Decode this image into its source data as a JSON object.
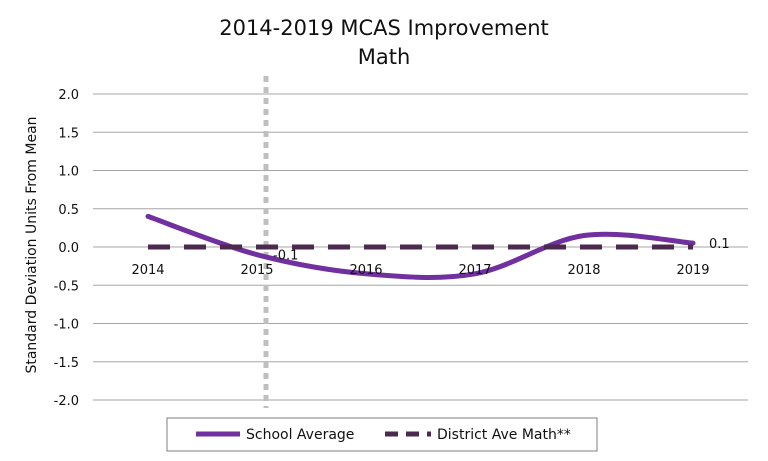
{
  "chart_data": {
    "type": "line",
    "title": "2014-2019 MCAS Improvement",
    "subtitle": "Math",
    "xlabel": "",
    "ylabel": "Standard Deviation Units From Mean",
    "categories": [
      "2014",
      "2015",
      "2016",
      "2017",
      "2018",
      "2019"
    ],
    "ylim": [
      -2.0,
      2.0
    ],
    "yticks": [
      "2.0",
      "1.5",
      "1.0",
      "0.5",
      "0.0",
      "-0.5",
      "-1.0",
      "-1.5",
      "-2.0"
    ],
    "ytick_values": [
      2.0,
      1.5,
      1.0,
      0.5,
      0.0,
      -0.5,
      -1.0,
      -1.5,
      -2.0
    ],
    "grid": true,
    "legend_position": "bottom",
    "series": [
      {
        "name": "School Average",
        "values": [
          0.4,
          -0.1,
          -0.35,
          -0.35,
          0.15,
          0.05
        ],
        "color": "#7030a0",
        "style": "solid-smooth"
      },
      {
        "name": "District Ave Math**",
        "values": [
          0,
          0,
          0,
          0,
          0,
          0
        ],
        "color": "#4b2a4d",
        "style": "dashed"
      }
    ],
    "annotations": [
      {
        "text": "-0.1",
        "category": "2015",
        "value": -0.1
      },
      {
        "text": "0.1",
        "category": "2019",
        "value": 0.05
      }
    ],
    "reference_line": {
      "category": "2015",
      "color": "#bfbfbf",
      "style": "dotted"
    }
  }
}
